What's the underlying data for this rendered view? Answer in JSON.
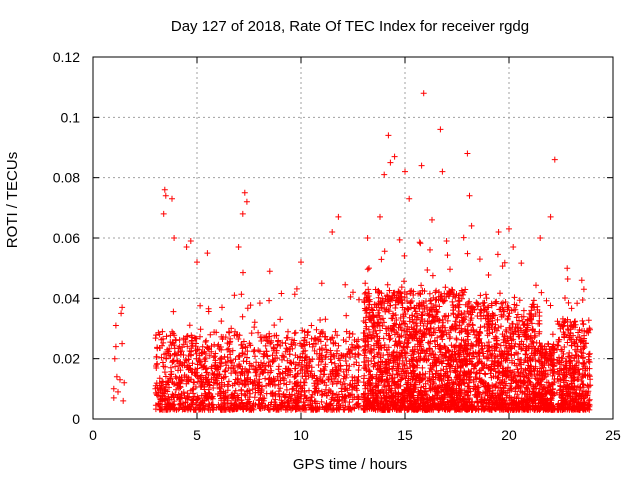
{
  "chart_data": {
    "type": "scatter",
    "title": "Day 127 of 2018, Rate Of TEC Index for receiver rgdg",
    "xlabel": "GPS time / hours",
    "ylabel": "ROTI / TECUs",
    "xlim": [
      0,
      25
    ],
    "ylim": [
      0,
      0.12
    ],
    "xticks": [
      0,
      5,
      10,
      15,
      20,
      25
    ],
    "yticks": [
      0,
      0.02,
      0.04,
      0.06,
      0.08,
      0.1,
      0.12
    ],
    "ytick_labels": [
      "0",
      "0.02",
      "0.04",
      "0.06",
      "0.08",
      "0.1",
      "0.12"
    ],
    "grid": true,
    "marker": "+",
    "color": "#ff0000",
    "series": [
      {
        "name": "ROTI",
        "points": [
          [
            1.0,
            0.007
          ],
          [
            1.0,
            0.01
          ],
          [
            1.05,
            0.02
          ],
          [
            1.1,
            0.024
          ],
          [
            1.1,
            0.031
          ],
          [
            1.15,
            0.014
          ],
          [
            1.2,
            0.009
          ],
          [
            1.3,
            0.013
          ],
          [
            1.35,
            0.035
          ],
          [
            1.4,
            0.037
          ],
          [
            1.4,
            0.025
          ],
          [
            1.45,
            0.006
          ],
          [
            1.5,
            0.012
          ],
          [
            3.0,
            0.01
          ],
          [
            3.2,
            0.028
          ],
          [
            3.4,
            0.068
          ],
          [
            3.45,
            0.076
          ],
          [
            3.5,
            0.074
          ],
          [
            3.8,
            0.073
          ],
          [
            3.9,
            0.06
          ],
          [
            4.5,
            0.057
          ],
          [
            4.7,
            0.059
          ],
          [
            5.0,
            0.052
          ],
          [
            5.5,
            0.055
          ],
          [
            6.2,
            0.037
          ],
          [
            6.8,
            0.041
          ],
          [
            7.0,
            0.057
          ],
          [
            7.2,
            0.068
          ],
          [
            7.3,
            0.075
          ],
          [
            7.4,
            0.072
          ],
          [
            8.5,
            0.049
          ],
          [
            9.0,
            0.033
          ],
          [
            10.0,
            0.052
          ],
          [
            10.5,
            0.031
          ],
          [
            11.0,
            0.045
          ],
          [
            11.5,
            0.062
          ],
          [
            11.8,
            0.067
          ],
          [
            12.5,
            0.042
          ],
          [
            13.2,
            0.06
          ],
          [
            13.8,
            0.067
          ],
          [
            14.0,
            0.081
          ],
          [
            14.2,
            0.094
          ],
          [
            14.3,
            0.085
          ],
          [
            14.5,
            0.087
          ],
          [
            15.0,
            0.082
          ],
          [
            15.2,
            0.073
          ],
          [
            15.8,
            0.084
          ],
          [
            15.9,
            0.108
          ],
          [
            16.3,
            0.066
          ],
          [
            16.7,
            0.096
          ],
          [
            16.8,
            0.082
          ],
          [
            17.0,
            0.059
          ],
          [
            18.0,
            0.088
          ],
          [
            18.1,
            0.074
          ],
          [
            18.2,
            0.064
          ],
          [
            18.6,
            0.053
          ],
          [
            19.5,
            0.062
          ],
          [
            20.0,
            0.063
          ],
          [
            20.2,
            0.057
          ],
          [
            21.5,
            0.06
          ],
          [
            22.0,
            0.067
          ],
          [
            22.2,
            0.086
          ],
          [
            22.8,
            0.05
          ],
          [
            23.5,
            0.046
          ],
          [
            23.6,
            0.043
          ]
        ]
      }
    ]
  }
}
